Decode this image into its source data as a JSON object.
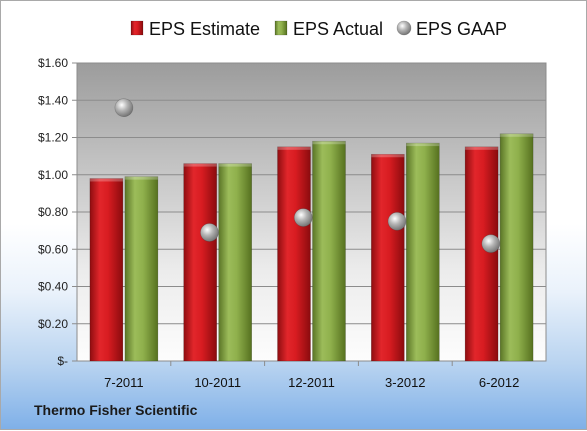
{
  "company": "Thermo Fisher Scientific",
  "chart_data": {
    "type": "bar",
    "categories": [
      "7-2011",
      "10-2011",
      "12-2011",
      "3-2012",
      "6-2012"
    ],
    "series": [
      {
        "name": "EPS Estimate",
        "kind": "bar",
        "color": "#c0161b",
        "values": [
          0.98,
          1.06,
          1.15,
          1.11,
          1.15
        ]
      },
      {
        "name": "EPS Actual",
        "kind": "bar",
        "color": "#7a9a3a",
        "values": [
          0.99,
          1.06,
          1.18,
          1.17,
          1.22
        ]
      },
      {
        "name": "EPS GAAP",
        "kind": "scatter",
        "color": "#9a9a9a",
        "values": [
          1.36,
          0.69,
          0.77,
          0.75,
          0.63
        ]
      }
    ],
    "ylim": [
      0,
      1.6
    ],
    "yticks": [
      0,
      0.2,
      0.4,
      0.6,
      0.8,
      1.0,
      1.2,
      1.4,
      1.6
    ],
    "ytick_labels": [
      "$-",
      "$0.20",
      "$0.40",
      "$0.60",
      "$0.80",
      "$1.00",
      "$1.20",
      "$1.40",
      "$1.60"
    ],
    "grid": true,
    "legend": "top"
  }
}
